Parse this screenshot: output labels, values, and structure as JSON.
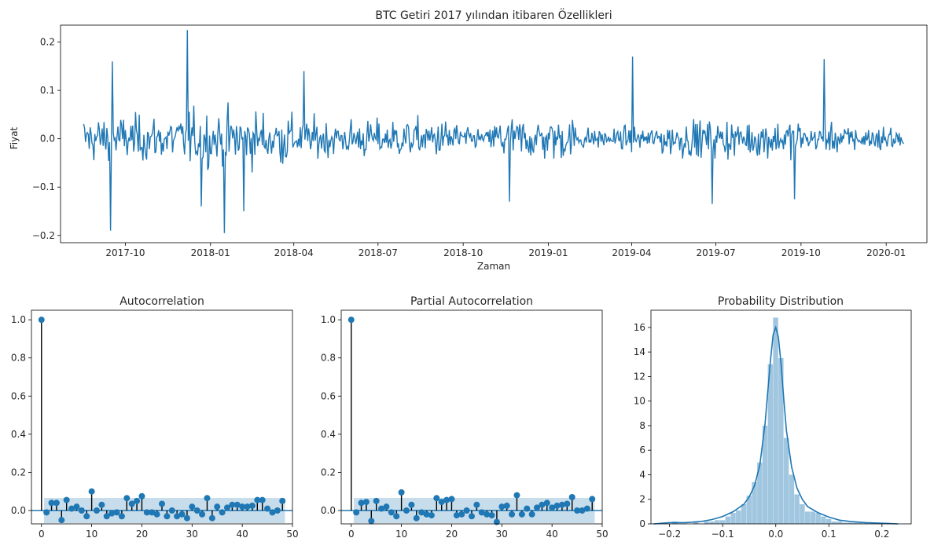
{
  "chart_data": [
    {
      "type": "line",
      "title": "BTC Getiri 2017 yılından itibaren  Özellikleri",
      "xlabel": "Zaman",
      "ylabel": "Fiyat",
      "x_start": "2017-08-17",
      "x_end": "2020-01-20",
      "frequency": "daily",
      "x_ticks": [
        "2017-10",
        "2018-01",
        "2018-04",
        "2018-07",
        "2018-10",
        "2019-01",
        "2019-04",
        "2019-07",
        "2019-10",
        "2020-01"
      ],
      "y_ticks": [
        "−0.2",
        "−0.1",
        "0.0",
        "0.1",
        "0.2"
      ],
      "ylim": [
        -0.215,
        0.235
      ],
      "color": "#1f77b4",
      "grid": false,
      "notable_points": [
        {
          "x": "2017-08-20",
          "y": 0.01
        },
        {
          "x": "2017-09-15",
          "y": -0.19
        },
        {
          "x": "2017-09-17",
          "y": 0.16
        },
        {
          "x": "2017-12-07",
          "y": 0.225
        },
        {
          "x": "2017-12-22",
          "y": -0.14
        },
        {
          "x": "2018-01-16",
          "y": -0.195
        },
        {
          "x": "2018-02-06",
          "y": -0.15
        },
        {
          "x": "2018-04-12",
          "y": 0.14
        },
        {
          "x": "2018-11-20",
          "y": -0.13
        },
        {
          "x": "2019-04-02",
          "y": 0.17
        },
        {
          "x": "2019-06-27",
          "y": -0.135
        },
        {
          "x": "2019-09-24",
          "y": -0.125
        },
        {
          "x": "2019-10-26",
          "y": 0.165
        },
        {
          "x": "2020-01-20",
          "y": -0.01
        }
      ]
    },
    {
      "type": "stem",
      "title": "Autocorrelation",
      "lags": [
        0,
        1,
        2,
        3,
        4,
        5,
        6,
        7,
        8,
        9,
        10,
        11,
        12,
        13,
        14,
        15,
        16,
        17,
        18,
        19,
        20,
        21,
        22,
        23,
        24,
        25,
        26,
        27,
        28,
        29,
        30,
        31,
        32,
        33,
        34,
        35,
        36,
        37,
        38,
        39,
        40,
        41,
        42,
        43,
        44,
        45,
        46,
        47,
        48
      ],
      "values": [
        1.0,
        -0.01,
        0.04,
        0.04,
        -0.05,
        0.055,
        0.01,
        0.02,
        0.0,
        -0.03,
        0.1,
        0.0,
        0.03,
        -0.03,
        -0.015,
        -0.01,
        -0.03,
        0.065,
        0.035,
        0.05,
        0.075,
        -0.01,
        -0.01,
        -0.02,
        0.035,
        -0.03,
        0.0,
        -0.03,
        -0.02,
        -0.04,
        0.02,
        0.0,
        -0.02,
        0.065,
        -0.04,
        0.02,
        -0.01,
        0.015,
        0.03,
        0.03,
        0.02,
        0.02,
        0.025,
        0.055,
        0.055,
        0.01,
        -0.01,
        0.0,
        0.05
      ],
      "confidence_band": 0.066,
      "xlim": [
        -2,
        50
      ],
      "ylim": [
        -0.07,
        1.05
      ],
      "x_ticks": [
        "0",
        "10",
        "20",
        "30",
        "40",
        "50"
      ],
      "y_ticks": [
        "0.0",
        "0.2",
        "0.4",
        "0.6",
        "0.8",
        "1.0"
      ]
    },
    {
      "type": "stem",
      "title": "Partial Autocorrelation",
      "lags": [
        0,
        1,
        2,
        3,
        4,
        5,
        6,
        7,
        8,
        9,
        10,
        11,
        12,
        13,
        14,
        15,
        16,
        17,
        18,
        19,
        20,
        21,
        22,
        23,
        24,
        25,
        26,
        27,
        28,
        29,
        30,
        31,
        32,
        33,
        34,
        35,
        36,
        37,
        38,
        39,
        40,
        41,
        42,
        43,
        44,
        45,
        46,
        47,
        48
      ],
      "values": [
        1.0,
        -0.01,
        0.04,
        0.045,
        -0.055,
        0.05,
        0.01,
        0.02,
        -0.01,
        -0.03,
        0.095,
        0.0,
        0.03,
        -0.04,
        -0.01,
        -0.02,
        -0.025,
        0.065,
        0.045,
        0.055,
        0.06,
        -0.025,
        -0.02,
        0.0,
        -0.03,
        0.03,
        -0.01,
        -0.02,
        -0.025,
        -0.06,
        0.02,
        0.025,
        -0.02,
        0.08,
        -0.02,
        0.01,
        -0.02,
        0.015,
        0.03,
        0.04,
        0.015,
        0.025,
        0.03,
        0.035,
        0.07,
        0.0,
        0.0,
        0.01,
        0.06
      ],
      "confidence_band": 0.066,
      "xlim": [
        -2,
        50
      ],
      "ylim": [
        -0.07,
        1.05
      ],
      "x_ticks": [
        "0",
        "10",
        "20",
        "30",
        "40",
        "50"
      ],
      "y_ticks": [
        "0.0",
        "0.2",
        "0.4",
        "0.6",
        "0.8",
        "1.0"
      ]
    },
    {
      "type": "histogram",
      "title": "Probability Distribution",
      "bin_centers": [
        -0.21,
        -0.2,
        -0.19,
        -0.18,
        -0.17,
        -0.16,
        -0.15,
        -0.14,
        -0.13,
        -0.12,
        -0.11,
        -0.1,
        -0.09,
        -0.08,
        -0.07,
        -0.06,
        -0.05,
        -0.04,
        -0.03,
        -0.02,
        -0.01,
        0.0,
        0.01,
        0.02,
        0.03,
        0.04,
        0.05,
        0.06,
        0.07,
        0.08,
        0.09,
        0.1,
        0.11,
        0.12,
        0.13,
        0.14,
        0.15,
        0.16,
        0.17,
        0.18,
        0.19,
        0.2,
        0.21,
        0.22
      ],
      "densities": [
        0.1,
        0.0,
        0.2,
        0.0,
        0.0,
        0.0,
        0.2,
        0.0,
        0.2,
        0.2,
        0.3,
        0.3,
        0.6,
        0.9,
        1.1,
        1.6,
        2.3,
        3.4,
        5.0,
        8.0,
        13.0,
        16.8,
        13.5,
        7.0,
        4.0,
        2.4,
        1.6,
        1.0,
        1.0,
        0.9,
        0.6,
        0.4,
        0.2,
        0.2,
        0.1,
        0.1,
        0.1,
        0.1,
        0.1,
        0.0,
        0.0,
        0.0,
        0.1,
        0.0
      ],
      "kde_x": [
        -0.23,
        -0.2,
        -0.17,
        -0.14,
        -0.12,
        -0.1,
        -0.08,
        -0.06,
        -0.05,
        -0.04,
        -0.03,
        -0.02,
        -0.015,
        -0.01,
        -0.005,
        0.0,
        0.005,
        0.01,
        0.015,
        0.02,
        0.03,
        0.04,
        0.05,
        0.06,
        0.08,
        0.1,
        0.12,
        0.14,
        0.17,
        0.2,
        0.23
      ],
      "kde_y": [
        0.0,
        0.1,
        0.1,
        0.2,
        0.35,
        0.6,
        1.0,
        1.6,
        2.2,
        3.1,
        4.8,
        8.2,
        10.8,
        13.3,
        15.4,
        16.0,
        15.2,
        13.0,
        10.2,
        7.6,
        4.6,
        2.9,
        2.0,
        1.4,
        0.9,
        0.55,
        0.3,
        0.2,
        0.1,
        0.05,
        0.0
      ],
      "xlim": [
        -0.235,
        0.255
      ],
      "ylim": [
        0,
        17.4
      ],
      "x_ticks": [
        "−0.2",
        "−0.1",
        "0.0",
        "0.1",
        "0.2"
      ],
      "y_ticks": [
        "0",
        "2",
        "4",
        "6",
        "8",
        "10",
        "12",
        "14",
        "16"
      ],
      "color": "#1f77b4"
    }
  ]
}
